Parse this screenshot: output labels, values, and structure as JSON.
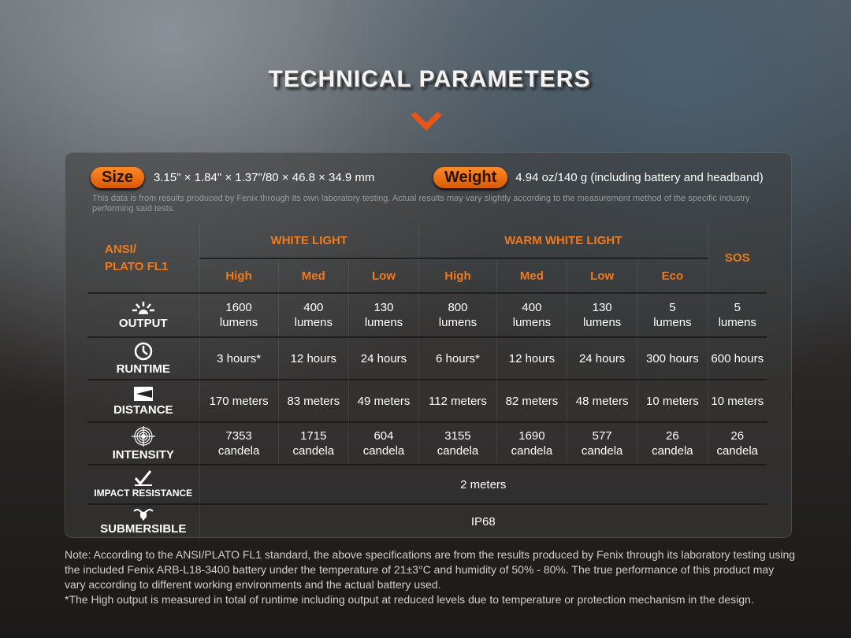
{
  "title": "TECHNICAL PARAMETERS",
  "size": {
    "label": "Size",
    "value": "3.15\" × 1.84\" × 1.37\"/80 × 46.8 × 34.9 mm"
  },
  "weight": {
    "label": "Weight",
    "value": "4.94 oz/140 g (including battery and headband)"
  },
  "disclaimer": "This data is from results produced by Fenix through its own laboratory testing. Actual results may vary slightly according to the measurement method of the specific industry performing said tests.",
  "table": {
    "corner": [
      "ANSI/",
      "PLATO FL1"
    ],
    "groups": [
      "WHITE LIGHT",
      "WARM WHITE LIGHT",
      "SOS"
    ],
    "modes": [
      "High",
      "Med",
      "Low",
      "High",
      "Med",
      "Low",
      "Eco"
    ],
    "rows": [
      {
        "label": "OUTPUT",
        "icon": "sunburst-icon",
        "cells": [
          [
            "1600",
            "lumens"
          ],
          [
            "400",
            "lumens"
          ],
          [
            "130",
            "lumens"
          ],
          [
            "800",
            "lumens"
          ],
          [
            "400",
            "lumens"
          ],
          [
            "130",
            "lumens"
          ],
          [
            "5",
            "lumens"
          ],
          [
            "5",
            "lumens"
          ]
        ]
      },
      {
        "label": "RUNTIME",
        "icon": "clock-icon",
        "cells": [
          [
            "3 hours*"
          ],
          [
            "12 hours"
          ],
          [
            "24 hours"
          ],
          [
            "6 hours*"
          ],
          [
            "12 hours"
          ],
          [
            "24 hours"
          ],
          [
            "300 hours"
          ],
          [
            "600 hours"
          ]
        ]
      },
      {
        "label": "DISTANCE",
        "icon": "beam-distance-icon",
        "cells": [
          [
            "170 meters"
          ],
          [
            "83 meters"
          ],
          [
            "49 meters"
          ],
          [
            "112 meters"
          ],
          [
            "82 meters"
          ],
          [
            "48 meters"
          ],
          [
            "10 meters"
          ],
          [
            "10 meters"
          ]
        ]
      },
      {
        "label": "INTENSITY",
        "icon": "target-icon",
        "cells": [
          [
            "7353",
            "candela"
          ],
          [
            "1715",
            "candela"
          ],
          [
            "604",
            "candela"
          ],
          [
            "3155",
            "candela"
          ],
          [
            "1690",
            "candela"
          ],
          [
            "577",
            "candela"
          ],
          [
            "26",
            "candela"
          ],
          [
            "26",
            "candela"
          ]
        ]
      }
    ],
    "impact": {
      "label": "IMPACT RESISTANCE",
      "value": "2 meters"
    },
    "submersible": {
      "label": "SUBMERSIBLE",
      "value": "IP68"
    }
  },
  "notes": [
    "Note: According to the ANSI/PLATO FL1 standard, the above specifications are from the results produced by Fenix through its laboratory testing using the included Fenix ARB-L18-3400 battery under the temperature of 21±3°C and humidity of 50% - 80%. The true performance of this product may vary according to different working environments and the actual battery used.",
    "*The High output is measured in total of runtime including output at reduced levels due to temperature or protection mechanism in the design."
  ],
  "colors": {
    "accent": "#f07a1c"
  }
}
